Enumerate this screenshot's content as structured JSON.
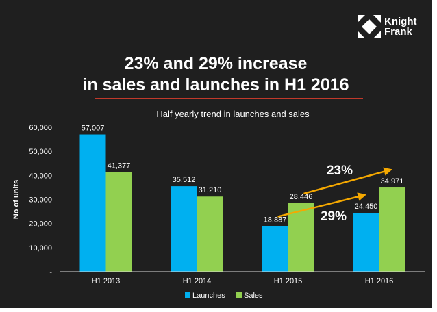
{
  "logo": {
    "line1": "Knight",
    "line2": "Frank"
  },
  "headline": {
    "line1": "23% and 29% increase",
    "line2": "in sales and launches in H1 2016"
  },
  "chart_data": {
    "type": "bar",
    "title": "Half yearly trend in launches and sales",
    "categories": [
      "H1 2013",
      "H1 2014",
      "H1 2015",
      "H1 2016"
    ],
    "series": [
      {
        "name": "Launches",
        "color": "#00b0f0",
        "values": [
          57007,
          35512,
          18887,
          24450
        ],
        "labels": [
          "57,007",
          "35,512",
          "18,887",
          "24,450"
        ]
      },
      {
        "name": "Sales",
        "color": "#92d050",
        "values": [
          41377,
          31210,
          28446,
          34971
        ],
        "labels": [
          "41,377",
          "31,210",
          "28,446",
          "34,971"
        ]
      }
    ],
    "ylabel": "No of units",
    "ylim": [
      0,
      60000
    ],
    "yticks": [
      0,
      10000,
      20000,
      30000,
      40000,
      50000,
      60000
    ],
    "ytick_labels": [
      "-",
      "10,000",
      "20,000",
      "30,000",
      "40,000",
      "50,000",
      "60,000"
    ],
    "legend_position": "bottom",
    "annotations": [
      {
        "text": "23%",
        "series": "Sales",
        "from": "H1 2015",
        "to": "H1 2016"
      },
      {
        "text": "29%",
        "series": "Launches",
        "from": "H1 2015",
        "to": "H1 2016"
      }
    ],
    "arrow_color": "#f5a800"
  }
}
